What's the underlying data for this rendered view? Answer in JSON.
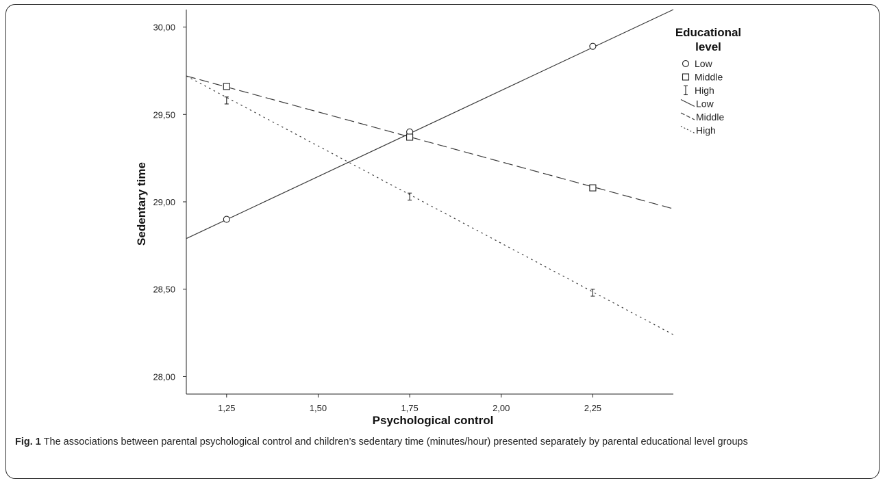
{
  "chart_data": {
    "type": "line",
    "xlabel": "Psychological control",
    "ylabel": "Sedentary time",
    "xlim": [
      1.14,
      2.47
    ],
    "ylim": [
      27.9,
      30.1
    ],
    "x_ticks": [
      "1,25",
      "1,50",
      "1,75",
      "2,00",
      "2,25"
    ],
    "x_tick_values": [
      1.25,
      1.5,
      1.75,
      2.0,
      2.25
    ],
    "y_ticks": [
      "28,00",
      "28,50",
      "29,00",
      "29,50",
      "30,00"
    ],
    "y_tick_values": [
      28.0,
      28.5,
      29.0,
      29.5,
      30.0
    ],
    "legend": {
      "title_line1": "Educational",
      "title_line2": "level",
      "position": "right"
    },
    "series": [
      {
        "name": "Low",
        "marker": "circle",
        "line_style": "solid",
        "points": [
          [
            1.25,
            28.9
          ],
          [
            1.75,
            29.4
          ],
          [
            2.25,
            29.89
          ]
        ],
        "line": [
          [
            1.14,
            28.79
          ],
          [
            2.47,
            30.1
          ]
        ]
      },
      {
        "name": "Middle",
        "marker": "square",
        "line_style": "dashed",
        "points": [
          [
            1.25,
            29.66
          ],
          [
            1.75,
            29.37
          ],
          [
            2.25,
            29.08
          ]
        ],
        "line": [
          [
            1.14,
            29.72
          ],
          [
            2.47,
            28.96
          ]
        ]
      },
      {
        "name": "High",
        "marker": "errorbar",
        "line_style": "dotted",
        "points": [
          [
            1.25,
            29.58
          ],
          [
            1.75,
            29.03
          ],
          [
            2.25,
            28.48
          ]
        ],
        "errors": [
          0.02,
          0.02,
          0.02
        ],
        "line": [
          [
            1.14,
            29.72
          ],
          [
            2.47,
            28.24
          ]
        ]
      }
    ],
    "grid": false
  },
  "caption": {
    "label": "Fig. 1",
    "text": " The associations between parental psychological control and children’s sedentary time (minutes/hour) presented separately by parental educational level groups"
  }
}
